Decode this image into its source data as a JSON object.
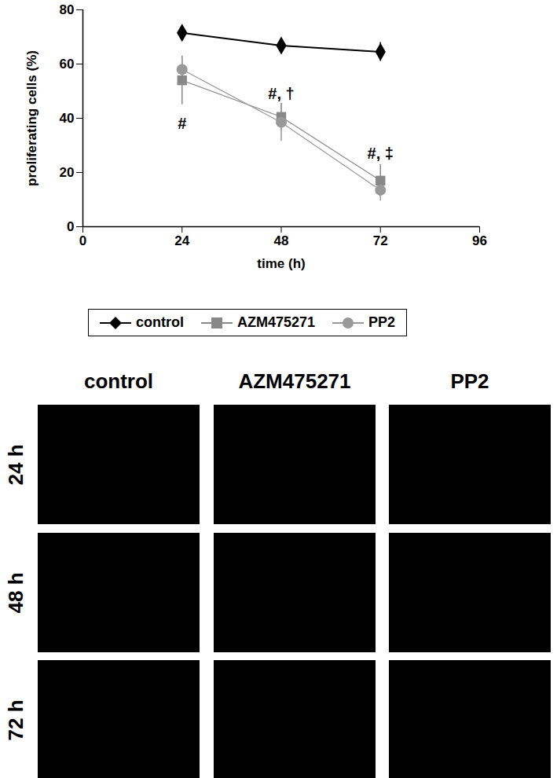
{
  "chart_data": {
    "type": "line",
    "x_label": "time (h)",
    "y_label": "proliferating cells (%)",
    "x": [
      24,
      48,
      72
    ],
    "xlim": [
      0,
      96
    ],
    "xticks": [
      0,
      24,
      48,
      72,
      96
    ],
    "ylim": [
      0,
      80
    ],
    "yticks": [
      0,
      20,
      40,
      60,
      80
    ],
    "legend": "bottom",
    "series": [
      {
        "name": "control",
        "color": "#000000",
        "marker": "diamond",
        "values": [
          71.5,
          66.8,
          64.5
        ],
        "errors": [
          1,
          2.5,
          3.5
        ]
      },
      {
        "name": "AZM475271",
        "color": "#888888",
        "marker": "square",
        "values": [
          54,
          40.5,
          17
        ],
        "errors": [
          9,
          5,
          6
        ]
      },
      {
        "name": "PP2",
        "color": "#999999",
        "marker": "circle",
        "values": [
          58,
          38.5,
          13.5
        ],
        "errors": [
          4,
          7,
          4
        ]
      }
    ],
    "annotations": [
      {
        "text": "#",
        "x": 24,
        "y": 38
      },
      {
        "text": "#, †",
        "x": 48,
        "y": 49
      },
      {
        "text": "#, ‡",
        "x": 72,
        "y": 27
      }
    ]
  },
  "panels": {
    "columns": [
      "control",
      "AZM475271",
      "PP2"
    ],
    "rows": [
      "24 h",
      "48 h",
      "72 h"
    ]
  }
}
